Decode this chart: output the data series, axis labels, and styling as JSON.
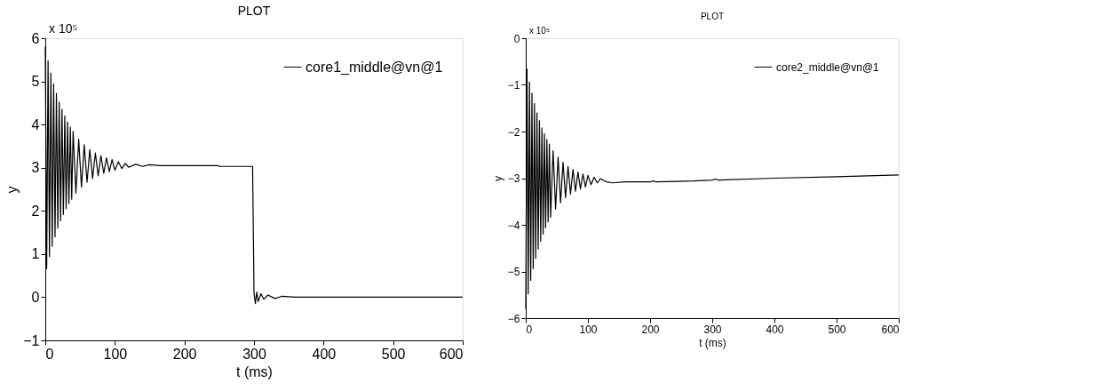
{
  "chart_data": [
    {
      "type": "line",
      "title": "PLOT",
      "xlabel": "t (ms)",
      "ylabel": "y",
      "annotations": [
        "x 10⁵"
      ],
      "legend": "top right",
      "grid": false,
      "xlim": [
        0,
        600
      ],
      "xticks": [
        0,
        100,
        200,
        300,
        400,
        500,
        600
      ],
      "ylim": [
        -1,
        6
      ],
      "yticks": [
        -1,
        0,
        1,
        2,
        3,
        4,
        5,
        6
      ],
      "x": [
        0,
        2,
        4,
        6,
        8,
        10,
        12,
        14,
        16,
        18,
        20,
        22,
        24,
        26,
        28,
        30,
        32,
        34,
        36,
        38,
        40,
        44,
        48,
        52,
        56,
        60,
        64,
        68,
        72,
        76,
        80,
        84,
        88,
        92,
        96,
        100,
        105,
        110,
        115,
        120,
        130,
        140,
        150,
        165,
        248,
        250,
        298,
        300,
        302,
        304,
        306,
        310,
        314,
        320,
        330,
        340,
        360,
        600
      ],
      "series": [
        {
          "name": "core1_middle@vn@1",
          "color": "#000000",
          "values": [
            5.8,
            0.66,
            5.48,
            0.94,
            5.19,
            1.18,
            4.94,
            1.4,
            4.72,
            1.6,
            4.52,
            1.77,
            4.35,
            1.92,
            4.2,
            2.05,
            4.06,
            2.17,
            3.94,
            2.27,
            3.84,
            2.41,
            3.66,
            2.55,
            3.53,
            2.66,
            3.42,
            2.75,
            3.34,
            2.81,
            3.28,
            2.87,
            3.23,
            2.91,
            3.19,
            2.94,
            3.14,
            2.98,
            3.1,
            3.01,
            3.08,
            3.03,
            3.07,
            3.05,
            3.05,
            3.03,
            3.03,
            0.1,
            -0.15,
            0.12,
            -0.1,
            0.08,
            -0.05,
            0.05,
            -0.03,
            0.02,
            0,
            0
          ]
        }
      ]
    },
    {
      "type": "line",
      "title": "PLOT",
      "xlabel": "t (ms)",
      "ylabel": "y",
      "annotations": [
        "x 10⁵"
      ],
      "legend": "top right",
      "grid": false,
      "xlim": [
        0,
        600
      ],
      "xticks": [
        0,
        100,
        200,
        300,
        400,
        500,
        600
      ],
      "ylim": [
        -6,
        0
      ],
      "yticks": [
        -6,
        -5,
        -4,
        -3,
        -2,
        -1,
        0
      ],
      "x": [
        0,
        2,
        4,
        6,
        8,
        10,
        12,
        14,
        16,
        18,
        20,
        22,
        24,
        26,
        28,
        30,
        32,
        34,
        36,
        38,
        40,
        44,
        48,
        52,
        56,
        60,
        64,
        68,
        72,
        76,
        80,
        84,
        88,
        92,
        96,
        100,
        105,
        110,
        115,
        120,
        130,
        140,
        160,
        200,
        205,
        210,
        270,
        300,
        305,
        310,
        400,
        500,
        600
      ],
      "series": [
        {
          "name": "core2_middle@vn@1",
          "color": "#000000",
          "values": [
            -5.8,
            -0.66,
            -5.48,
            -0.94,
            -5.19,
            -1.18,
            -4.94,
            -1.4,
            -4.72,
            -1.6,
            -4.52,
            -1.77,
            -4.35,
            -1.92,
            -4.2,
            -2.05,
            -4.06,
            -2.17,
            -3.94,
            -2.27,
            -3.84,
            -2.41,
            -3.66,
            -2.55,
            -3.53,
            -2.66,
            -3.42,
            -2.75,
            -3.34,
            -2.81,
            -3.28,
            -2.87,
            -3.23,
            -2.91,
            -3.19,
            -2.94,
            -3.14,
            -2.98,
            -3.1,
            -3.01,
            -3.08,
            -3.1,
            -3.08,
            -3.08,
            -3.06,
            -3.08,
            -3.06,
            -3.04,
            -3.02,
            -3.04,
            -3.0,
            -2.97,
            -2.93
          ]
        }
      ]
    }
  ]
}
